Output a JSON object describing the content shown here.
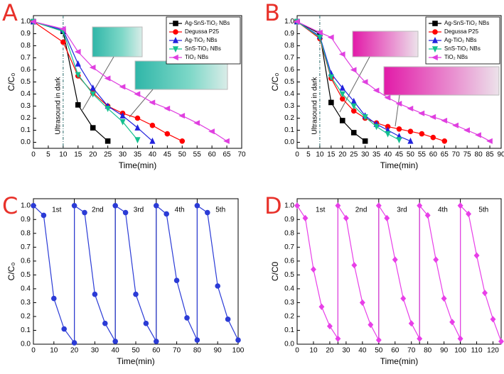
{
  "chart_data": [
    {
      "type": "line",
      "panel_label": "A",
      "xlabel": "Time(min)",
      "ylabel": "C/C₀",
      "xlim": [
        0,
        70
      ],
      "xticks": [
        0,
        5,
        10,
        15,
        20,
        25,
        30,
        35,
        40,
        45,
        50,
        55,
        60,
        65,
        70
      ],
      "ylim": [
        -0.05,
        1.05
      ],
      "yticks": [
        {
          "value": 0,
          "label": "0.0"
        },
        0.1,
        0.2,
        0.3,
        0.4,
        0.5,
        0.6,
        0.7,
        0.8,
        0.9,
        {
          "value": 1,
          "label": "1.0"
        }
      ],
      "legend": "upper right",
      "vline": {
        "x": 10,
        "label": "Ultrasound in dark"
      },
      "series": [
        {
          "name": "Ag-SnS-TiO₂ NBs",
          "color": "#000000",
          "marker": "square",
          "x": [
            0,
            10,
            15,
            20,
            25
          ],
          "values": [
            1.0,
            0.92,
            0.31,
            0.12,
            0.01
          ]
        },
        {
          "name": "Degussa P25",
          "color": "#ff0000",
          "marker": "circle",
          "x": [
            0,
            10,
            15,
            20,
            25,
            30,
            35,
            40,
            45,
            50
          ],
          "values": [
            1.0,
            0.83,
            0.55,
            0.41,
            0.3,
            0.24,
            0.2,
            0.14,
            0.07,
            0.01
          ]
        },
        {
          "name": "Ag-TiO₂ NBs",
          "color": "#2222dd",
          "marker": "triangle-up",
          "x": [
            0,
            10,
            15,
            20,
            25,
            30,
            35,
            40
          ],
          "values": [
            1.0,
            0.93,
            0.65,
            0.45,
            0.3,
            0.22,
            0.12,
            0.01
          ]
        },
        {
          "name": "SnS-TiO₂ NBs",
          "color": "#14c08f",
          "marker": "triangle-down",
          "x": [
            0,
            10,
            15,
            20,
            25,
            30,
            35
          ],
          "values": [
            1.0,
            0.92,
            0.56,
            0.4,
            0.28,
            0.17,
            0.02
          ]
        },
        {
          "name": "TiO₂ NBs",
          "color": "#e040e0",
          "marker": "triangle-left",
          "x": [
            0,
            10,
            15,
            20,
            25,
            30,
            35,
            40,
            45,
            50,
            55,
            60,
            65
          ],
          "values": [
            1.0,
            0.94,
            0.75,
            0.62,
            0.53,
            0.46,
            0.4,
            0.33,
            0.28,
            0.22,
            0.16,
            0.09,
            0.01
          ]
        }
      ]
    },
    {
      "type": "line",
      "panel_label": "B",
      "xlabel": "Time(min)",
      "ylabel": "C/C₀",
      "xlim": [
        0,
        90
      ],
      "xticks": [
        0,
        5,
        10,
        15,
        20,
        25,
        30,
        35,
        40,
        45,
        50,
        55,
        60,
        65,
        70,
        75,
        80,
        85,
        90
      ],
      "ylim": [
        -0.05,
        1.05
      ],
      "yticks": [
        {
          "value": 0,
          "label": "0.0"
        },
        0.1,
        0.2,
        0.3,
        0.4,
        0.5,
        0.6,
        0.7,
        0.8,
        0.9,
        {
          "value": 1,
          "label": "1.0"
        }
      ],
      "legend": "upper right",
      "vline": {
        "x": 10,
        "label": "Ultrasound in dark"
      },
      "series": [
        {
          "name": "Ag-SnS-TiO₂ NBs",
          "color": "#000000",
          "marker": "square",
          "x": [
            0,
            10,
            15,
            20,
            25,
            30
          ],
          "values": [
            1.0,
            0.9,
            0.33,
            0.18,
            0.08,
            0.01
          ]
        },
        {
          "name": "Degussa P25",
          "color": "#ff0000",
          "marker": "circle",
          "x": [
            0,
            10,
            15,
            20,
            25,
            30,
            35,
            40,
            45,
            50,
            55,
            60,
            65
          ],
          "values": [
            1.0,
            0.86,
            0.53,
            0.36,
            0.26,
            0.2,
            0.16,
            0.13,
            0.11,
            0.09,
            0.07,
            0.04,
            0.01
          ]
        },
        {
          "name": "Ag-TiO₂ NBs",
          "color": "#2222dd",
          "marker": "triangle-up",
          "x": [
            0,
            10,
            15,
            20,
            25,
            30,
            35,
            40,
            45,
            50
          ],
          "values": [
            1.0,
            0.88,
            0.57,
            0.45,
            0.34,
            0.22,
            0.15,
            0.1,
            0.05,
            0.01
          ]
        },
        {
          "name": "SnS-TiO₂ NBs",
          "color": "#14c08f",
          "marker": "triangle-down",
          "x": [
            0,
            10,
            15,
            20,
            25,
            30,
            35,
            40,
            45
          ],
          "values": [
            1.0,
            0.87,
            0.54,
            0.4,
            0.3,
            0.21,
            0.13,
            0.07,
            0.02
          ]
        },
        {
          "name": "TiO₂ NBs",
          "color": "#e040e0",
          "marker": "triangle-left",
          "x": [
            0,
            10,
            15,
            20,
            25,
            30,
            35,
            40,
            45,
            50,
            55,
            60,
            65,
            70,
            75,
            80,
            85
          ],
          "values": [
            1.0,
            0.91,
            0.87,
            0.73,
            0.6,
            0.5,
            0.43,
            0.37,
            0.32,
            0.28,
            0.24,
            0.21,
            0.18,
            0.14,
            0.1,
            0.06,
            0.01
          ]
        }
      ]
    },
    {
      "type": "line",
      "panel_label": "C",
      "xlabel": "Time(min)",
      "ylabel": "C/C₀",
      "xlim": [
        0,
        100
      ],
      "xticks": [
        0,
        10,
        20,
        30,
        40,
        50,
        60,
        70,
        80,
        90,
        100
      ],
      "ylim": [
        0,
        1.05
      ],
      "yticks": [
        {
          "value": 0,
          "label": "0.0"
        },
        0.1,
        0.2,
        0.3,
        0.4,
        0.5,
        0.6,
        0.7,
        0.8,
        0.9,
        {
          "value": 1,
          "label": "1.0"
        }
      ],
      "separators": [
        20,
        40,
        60,
        80
      ],
      "cycle_labels": [
        "1st",
        "2nd",
        "3rd",
        "4th",
        "5th"
      ],
      "series": [
        {
          "color": "#2b3bd6",
          "marker": "circle",
          "x": [
            0,
            5,
            10,
            15,
            20,
            20,
            25,
            30,
            35,
            40,
            40,
            45,
            50,
            55,
            60,
            60,
            65,
            70,
            75,
            80,
            80,
            85,
            90,
            95,
            100
          ],
          "values": [
            1.0,
            0.93,
            0.33,
            0.11,
            0.01,
            1.0,
            0.95,
            0.36,
            0.15,
            0.02,
            1.0,
            0.95,
            0.36,
            0.15,
            0.02,
            1.0,
            0.94,
            0.46,
            0.19,
            0.03,
            1.0,
            0.95,
            0.42,
            0.18,
            0.03
          ]
        }
      ]
    },
    {
      "type": "line",
      "panel_label": "D",
      "xlabel": "Time(min)",
      "ylabel": "C/C0",
      "xlim": [
        0,
        125
      ],
      "xticks": [
        0,
        10,
        20,
        30,
        40,
        50,
        60,
        70,
        80,
        90,
        100,
        110,
        120
      ],
      "ylim": [
        0,
        1.05
      ],
      "yticks": [
        {
          "value": 0,
          "label": "0.0"
        },
        0.1,
        0.2,
        0.3,
        0.4,
        0.5,
        0.6,
        0.7,
        0.8,
        0.9,
        {
          "value": 1,
          "label": "1.0"
        }
      ],
      "separators": [
        25,
        50,
        75,
        100
      ],
      "cycle_labels": [
        "1st",
        "2nd",
        "3rd",
        "4th",
        "5th"
      ],
      "series": [
        {
          "color": "#e83fe8",
          "marker": "diamond",
          "x": [
            0,
            5,
            10,
            15,
            20,
            25,
            25,
            30,
            35,
            40,
            45,
            50,
            50,
            55,
            60,
            65,
            70,
            75,
            75,
            80,
            85,
            90,
            95,
            100,
            100,
            105,
            110,
            115,
            120,
            125
          ],
          "values": [
            1.0,
            0.91,
            0.54,
            0.27,
            0.13,
            0.04,
            1.0,
            0.91,
            0.57,
            0.3,
            0.14,
            0.03,
            1.0,
            0.91,
            0.61,
            0.33,
            0.15,
            0.04,
            1.0,
            0.93,
            0.61,
            0.33,
            0.16,
            0.04,
            1.0,
            0.94,
            0.64,
            0.37,
            0.18,
            0.02
          ]
        }
      ]
    }
  ]
}
